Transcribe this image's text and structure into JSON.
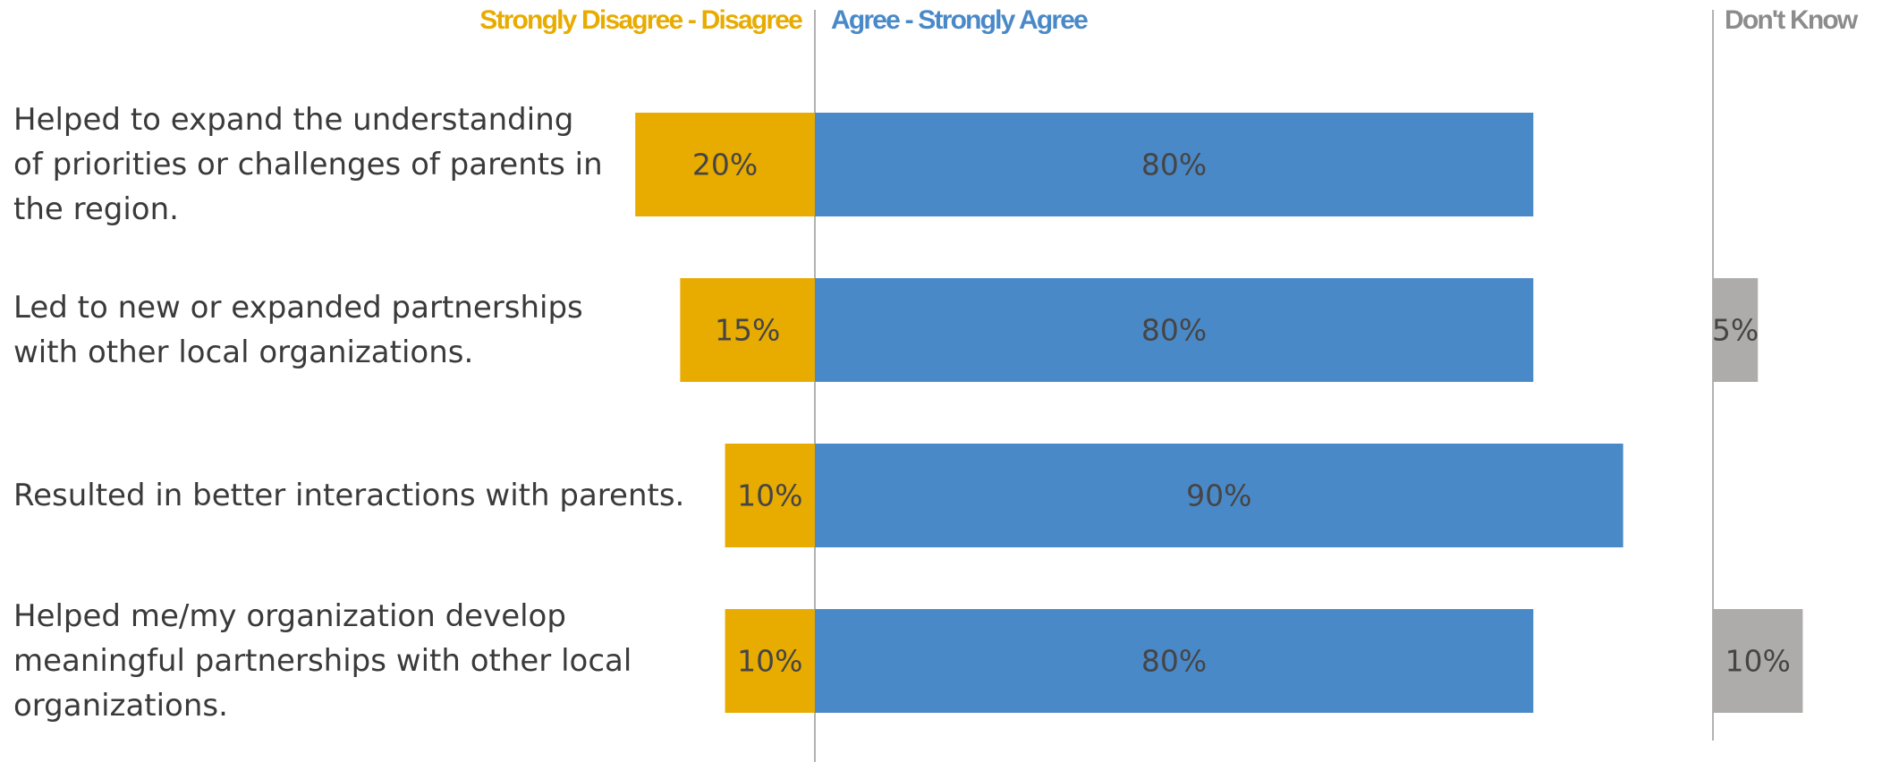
{
  "chart_data": {
    "type": "diverging-bar",
    "categories": [
      "Helped to expand the understanding\nof priorities or challenges of parents in\nthe region.",
      "Led to new or expanded partnerships\nwith other local organizations.",
      "Resulted in better interactions with parents.",
      "Helped me/my organization develop\nmeaningful partnerships with other local\norganizations."
    ],
    "series": [
      {
        "name": "Strongly Disagree - Disagree",
        "color": "#e8ab00",
        "values": [
          20,
          15,
          10,
          10
        ],
        "value_labels": [
          "20%",
          "15%",
          "10%",
          "10%"
        ]
      },
      {
        "name": "Agree - Strongly Agree",
        "color": "#4a89c8",
        "values": [
          80,
          80,
          90,
          80
        ],
        "value_labels": [
          "80%",
          "80%",
          "90%",
          "80%"
        ]
      },
      {
        "name": "Don't Know",
        "color": "#aeabab",
        "values": [
          null,
          5,
          null,
          10
        ],
        "value_labels": [
          null,
          "5%",
          null,
          "10%"
        ]
      }
    ]
  }
}
